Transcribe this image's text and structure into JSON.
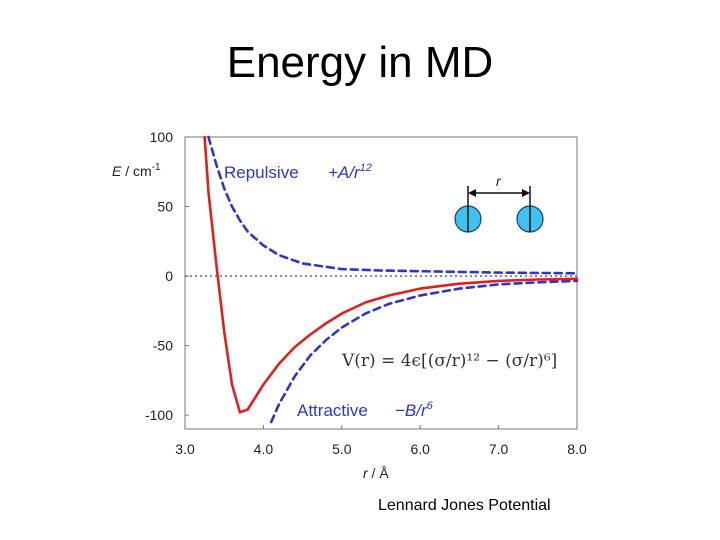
{
  "slide": {
    "title": "Energy in MD",
    "caption": "Lennard Jones Potential"
  },
  "chart_data": {
    "type": "line",
    "xlabel_symbol": "r",
    "xlabel_unit": " / Å",
    "ylabel_symbol": "E",
    "ylabel_unit": " / cm",
    "ylabel_exp": "-1",
    "xlim": [
      3.0,
      8.0
    ],
    "ylim": [
      -110,
      100
    ],
    "x_ticks": [
      "3.0",
      "4.0",
      "5.0",
      "6.0",
      "7.0",
      "8.0"
    ],
    "y_ticks": [
      "100",
      "50",
      "0",
      "-50",
      "-100"
    ],
    "zero_line": true,
    "colors": {
      "total": "#e02020",
      "components": "#2d36c8",
      "zero": "#333333"
    },
    "series": [
      {
        "name": "total",
        "style": "solid",
        "x": [
          3.25,
          3.3,
          3.4,
          3.5,
          3.6,
          3.7,
          3.8,
          3.9,
          4.0,
          4.2,
          4.4,
          4.6,
          4.8,
          5.0,
          5.3,
          5.6,
          6.0,
          6.5,
          7.0,
          7.5,
          8.0
        ],
        "y": [
          100,
          60,
          8,
          -40,
          -78,
          -98,
          -96,
          -87,
          -78,
          -63,
          -51,
          -42,
          -34,
          -27,
          -19,
          -14,
          -9,
          -5.5,
          -3.5,
          -2.5,
          -2
        ]
      },
      {
        "name": "repulsive",
        "style": "dashed",
        "x": [
          3.3,
          3.4,
          3.5,
          3.6,
          3.7,
          3.8,
          4.0,
          4.2,
          4.5,
          5.0,
          5.5,
          6.0,
          7.0,
          8.0
        ],
        "y": [
          100,
          80,
          63,
          50,
          40,
          32,
          22,
          15,
          9,
          5,
          4,
          3.5,
          2.5,
          2
        ]
      },
      {
        "name": "attractive",
        "style": "dashed",
        "x": [
          4.1,
          4.2,
          4.4,
          4.6,
          4.8,
          5.0,
          5.3,
          5.6,
          6.0,
          6.5,
          7.0,
          7.5,
          8.0
        ],
        "y": [
          -105,
          -92,
          -72,
          -57,
          -46,
          -37,
          -27,
          -20,
          -14,
          -9,
          -6,
          -4.5,
          -3.5
        ]
      }
    ],
    "annotations": {
      "repulsive_label": "Repulsive",
      "repulsive_formula_pre": "+A/r",
      "repulsive_formula_exp": "12",
      "attractive_label": "Attractive",
      "attractive_formula_pre": "−B/r",
      "attractive_formula_exp": "6",
      "equation": "V(r) = 4ϵ[(σ/r)¹² − (σ/r)⁶]",
      "inset_label": "r"
    }
  }
}
